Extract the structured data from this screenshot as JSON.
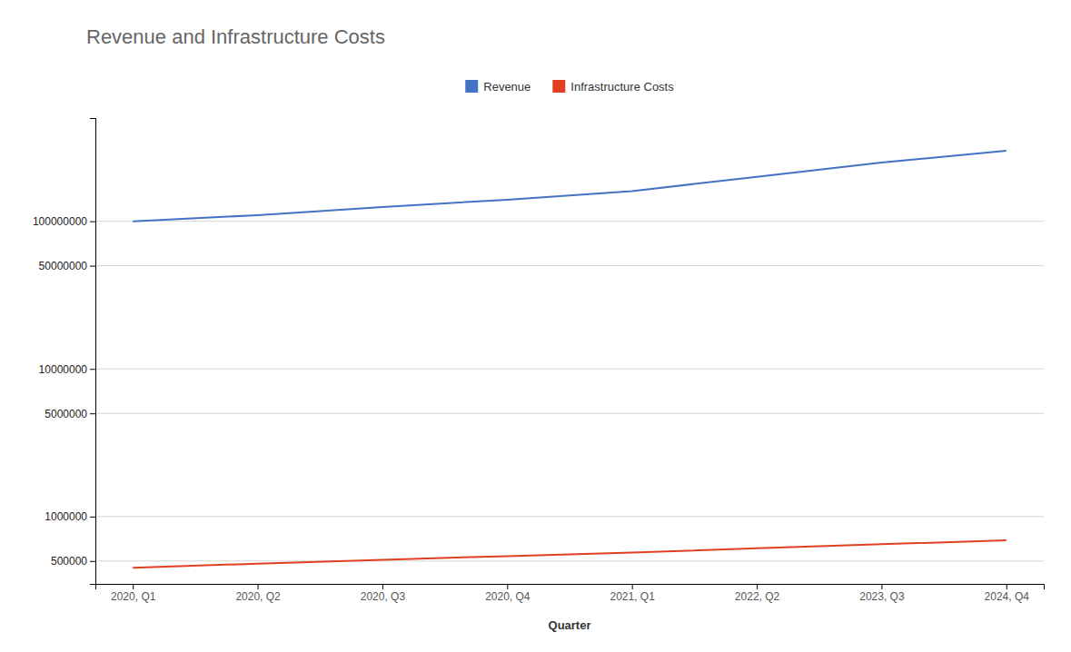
{
  "chart_data": {
    "type": "line",
    "title": "Revenue and Infrastructure Costs",
    "x_label": "Quarter",
    "categories": [
      "2020, Q1",
      "2020, Q2",
      "2020, Q3",
      "2020, Q4",
      "2021, Q1",
      "2022, Q2",
      "2023, Q3",
      "2024, Q4"
    ],
    "series": [
      {
        "name": "Revenue",
        "color": "#4472C4",
        "values": [
          100000000,
          110000000,
          125000000,
          140000000,
          160000000,
          200000000,
          250000000,
          300000000
        ]
      },
      {
        "name": "Infrastructure Costs",
        "color": "#E04020",
        "values": [
          450000,
          480000,
          510000,
          540000,
          570000,
          610000,
          650000,
          690000
        ]
      }
    ],
    "ylim": [
      350000,
      500000000
    ],
    "yticks": [
      500000,
      1000000,
      5000000,
      10000000,
      50000000,
      100000000
    ],
    "log": "y",
    "grid": true,
    "legend": "top"
  }
}
